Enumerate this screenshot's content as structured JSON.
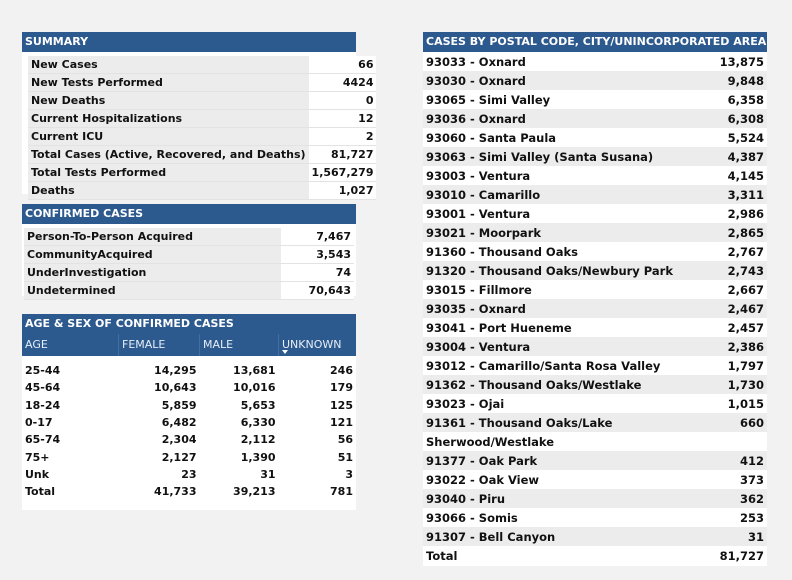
{
  "summary": {
    "title": "SUMMARY",
    "rows": [
      {
        "label": "New Cases",
        "value": "66"
      },
      {
        "label": "New Tests Performed",
        "value": "4424"
      },
      {
        "label": "New Deaths",
        "value": "0"
      },
      {
        "label": "Current Hospitalizations",
        "value": "12"
      },
      {
        "label": "Current ICU",
        "value": "2"
      },
      {
        "label": "Total Cases (Active, Recovered, and Deaths)",
        "value": "81,727"
      },
      {
        "label": "Total Tests Performed",
        "value": "1,567,279"
      },
      {
        "label": "Deaths",
        "value": "1,027"
      }
    ]
  },
  "confirmed": {
    "title": "CONFIRMED CASES",
    "rows": [
      {
        "label": "Person-To-Person Acquired",
        "value": "7,467"
      },
      {
        "label": "CommunityAcquired",
        "value": "3,543"
      },
      {
        "label": "UnderInvestigation",
        "value": "74"
      },
      {
        "label": "Undetermined",
        "value": "70,643"
      }
    ]
  },
  "age_sex": {
    "title": "AGE & SEX OF CONFIRMED CASES",
    "columns": [
      "AGE",
      "FEMALE",
      "MALE",
      "UNKNOWN"
    ],
    "sort_icon": "sort-descending-icon",
    "rows": [
      {
        "age": "25-44",
        "female": "14,295",
        "male": "13,681",
        "unknown": "246"
      },
      {
        "age": "45-64",
        "female": "10,643",
        "male": "10,016",
        "unknown": "179"
      },
      {
        "age": "18-24",
        "female": "5,859",
        "male": "5,653",
        "unknown": "125"
      },
      {
        "age": "0-17",
        "female": "6,482",
        "male": "6,330",
        "unknown": "121"
      },
      {
        "age": "65-74",
        "female": "2,304",
        "male": "2,112",
        "unknown": "56"
      },
      {
        "age": "75+",
        "female": "2,127",
        "male": "1,390",
        "unknown": "51"
      },
      {
        "age": "Unk",
        "female": "23",
        "male": "31",
        "unknown": "3"
      },
      {
        "age": "Total",
        "female": "41,733",
        "male": "39,213",
        "unknown": "781"
      }
    ]
  },
  "postal": {
    "title": "CASES BY POSTAL CODE, CITY/UNINCORPORATED AREA",
    "rows": [
      {
        "area": "93033 - Oxnard",
        "cases": "13,875"
      },
      {
        "area": "93030 - Oxnard",
        "cases": "9,848"
      },
      {
        "area": "93065 - Simi Valley",
        "cases": "6,358"
      },
      {
        "area": "93036 - Oxnard",
        "cases": "6,308"
      },
      {
        "area": "93060 - Santa Paula",
        "cases": "5,524"
      },
      {
        "area": "93063 - Simi Valley (Santa Susana)",
        "cases": "4,387"
      },
      {
        "area": "93003 - Ventura",
        "cases": "4,145"
      },
      {
        "area": "93010 - Camarillo",
        "cases": "3,311"
      },
      {
        "area": "93001 - Ventura",
        "cases": "2,986"
      },
      {
        "area": "93021 - Moorpark",
        "cases": "2,865"
      },
      {
        "area": "91360 - Thousand Oaks",
        "cases": "2,767"
      },
      {
        "area": "91320 - Thousand Oaks/Newbury Park",
        "cases": "2,743"
      },
      {
        "area": "93015 - Fillmore",
        "cases": "2,667"
      },
      {
        "area": "93035 - Oxnard",
        "cases": "2,467"
      },
      {
        "area": "93041 - Port Hueneme",
        "cases": "2,457"
      },
      {
        "area": "93004 - Ventura",
        "cases": "2,386"
      },
      {
        "area": "93012 - Camarillo/Santa Rosa Valley",
        "cases": "1,797"
      },
      {
        "area": "91362 - Thousand Oaks/Westlake",
        "cases": "1,730"
      },
      {
        "area": "93023 - Ojai",
        "cases": "1,015"
      },
      {
        "area": "91361 - Thousand Oaks/Lake",
        "cases": "660"
      },
      {
        "area": "Sherwood/Westlake",
        "cases": ""
      },
      {
        "area": "91377 - Oak Park",
        "cases": "412"
      },
      {
        "area": "93022 - Oak View",
        "cases": "373"
      },
      {
        "area": "93040 - Piru",
        "cases": "362"
      },
      {
        "area": "93066 - Somis",
        "cases": "253"
      },
      {
        "area": "91307 - Bell Canyon",
        "cases": "31"
      }
    ],
    "total_label": "Total",
    "total_value": "81,727"
  },
  "colors": {
    "header_bg": "#2d5a8e",
    "row_alt": "#ececec"
  }
}
